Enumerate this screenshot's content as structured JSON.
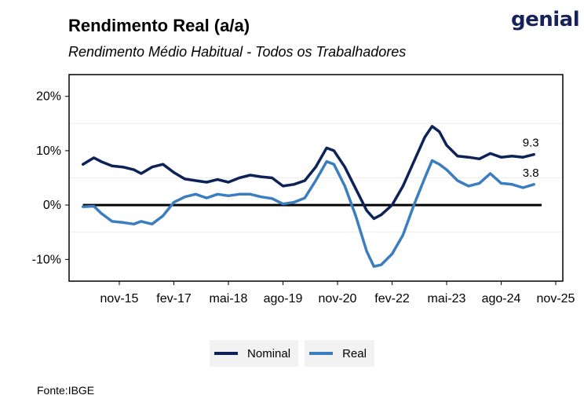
{
  "header": {
    "title": "Rendimento Real (a/a)",
    "subtitle": "Rendimento Médio Habitual - Todos os Trabalhadores",
    "logo_text": "genial"
  },
  "footer": {
    "source": "Fonte:IBGE"
  },
  "colors": {
    "nominal": "#0d2257",
    "real": "#3a7ebf",
    "zero_line": "#000000"
  },
  "chart_data": {
    "type": "line",
    "title": "Rendimento Real (a/a)",
    "subtitle": "Rendimento Médio Habitual - Todos os Trabalhadores",
    "xlabel": "",
    "ylabel": "",
    "ylim": [
      -14,
      24
    ],
    "y_ticks": [
      20,
      10,
      0,
      -10
    ],
    "y_tick_labels": [
      "20%",
      "10%",
      "0%",
      "-10%"
    ],
    "x_ticks": [
      "2015-11",
      "2017-02",
      "2018-05",
      "2019-08",
      "2020-11",
      "2022-02",
      "2023-05",
      "2024-08",
      "2025-11"
    ],
    "x_tick_labels": [
      "nov-15",
      "fev-17",
      "mai-18",
      "ago-19",
      "nov-20",
      "fev-22",
      "mai-23",
      "ago-24",
      "nov-25"
    ],
    "grid": "horizontal minor lines only",
    "legend_position": "bottom",
    "end_labels": [
      "9.3",
      "3.8"
    ],
    "series": [
      {
        "name": "Nominal",
        "color": "#0d2257",
        "x": [
          "2015-01",
          "2015-04",
          "2015-06",
          "2015-09",
          "2015-12",
          "2016-03",
          "2016-05",
          "2016-08",
          "2016-11",
          "2017-02",
          "2017-05",
          "2017-08",
          "2017-11",
          "2018-02",
          "2018-05",
          "2018-08",
          "2018-11",
          "2019-02",
          "2019-05",
          "2019-08",
          "2019-11",
          "2020-02",
          "2020-05",
          "2020-08",
          "2020-10",
          "2021-01",
          "2021-04",
          "2021-07",
          "2021-09",
          "2021-11",
          "2022-02",
          "2022-05",
          "2022-08",
          "2022-11",
          "2023-01",
          "2023-03",
          "2023-05",
          "2023-08",
          "2023-11",
          "2024-02",
          "2024-05",
          "2024-08",
          "2024-11",
          "2025-02",
          "2025-05"
        ],
        "values": [
          7.5,
          8.7,
          8.0,
          7.2,
          7.0,
          6.5,
          5.8,
          7.0,
          7.5,
          6.0,
          4.8,
          4.5,
          4.2,
          4.7,
          4.2,
          5.0,
          5.5,
          5.2,
          5.0,
          3.5,
          3.8,
          4.5,
          7.0,
          10.5,
          10.0,
          7.0,
          3.0,
          -1.0,
          -2.5,
          -1.8,
          0.0,
          3.5,
          8.0,
          12.5,
          14.5,
          13.5,
          11.0,
          9.0,
          8.8,
          8.5,
          9.5,
          8.8,
          9.0,
          8.8,
          9.3
        ]
      },
      {
        "name": "Real",
        "color": "#3a7ebf",
        "x": [
          "2015-01",
          "2015-04",
          "2015-06",
          "2015-09",
          "2015-12",
          "2016-03",
          "2016-05",
          "2016-08",
          "2016-11",
          "2017-02",
          "2017-05",
          "2017-08",
          "2017-11",
          "2018-02",
          "2018-05",
          "2018-08",
          "2018-11",
          "2019-02",
          "2019-05",
          "2019-08",
          "2019-11",
          "2020-02",
          "2020-05",
          "2020-08",
          "2020-10",
          "2021-01",
          "2021-04",
          "2021-07",
          "2021-09",
          "2021-11",
          "2022-02",
          "2022-05",
          "2022-08",
          "2022-11",
          "2023-01",
          "2023-03",
          "2023-05",
          "2023-08",
          "2023-11",
          "2024-02",
          "2024-05",
          "2024-08",
          "2024-11",
          "2025-02",
          "2025-05"
        ],
        "values": [
          -0.3,
          -0.2,
          -1.5,
          -3.0,
          -3.2,
          -3.5,
          -3.0,
          -3.5,
          -2.0,
          0.5,
          1.5,
          2.0,
          1.3,
          2.0,
          1.7,
          2.0,
          2.0,
          1.5,
          1.2,
          0.2,
          0.5,
          1.3,
          4.5,
          8.0,
          7.5,
          3.5,
          -2.0,
          -8.5,
          -11.3,
          -11.0,
          -9.0,
          -5.5,
          0.0,
          5.0,
          8.2,
          7.5,
          6.5,
          4.5,
          3.5,
          4.0,
          5.8,
          4.0,
          3.8,
          3.2,
          3.8
        ]
      }
    ]
  }
}
